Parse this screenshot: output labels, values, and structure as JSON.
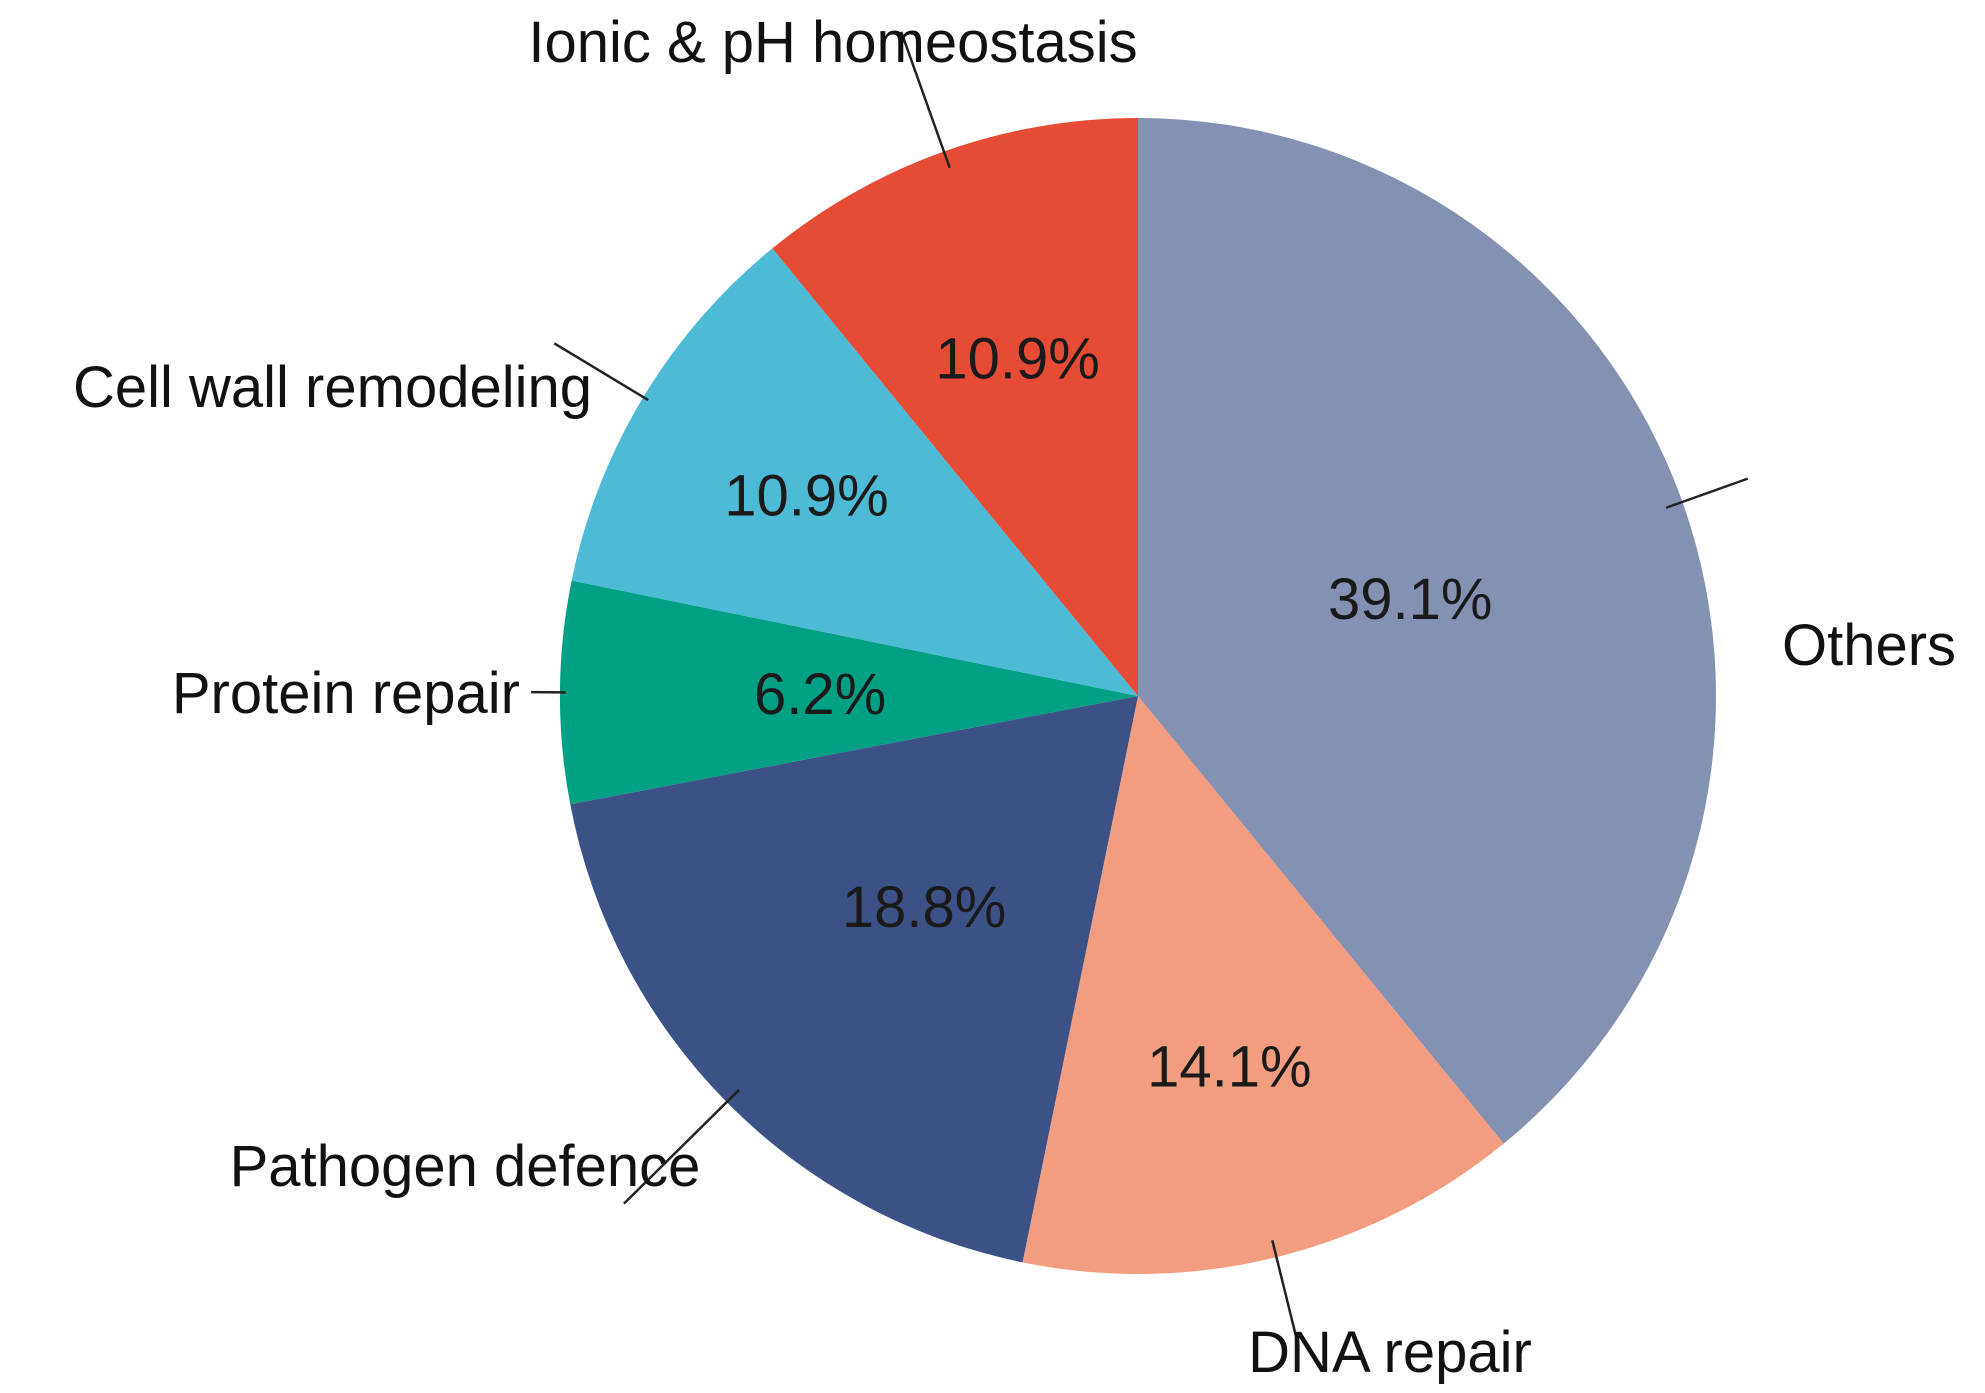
{
  "chart_data": {
    "type": "pie",
    "title": "",
    "start_angle_deg": 0,
    "direction": "clockwise",
    "slices": [
      {
        "name": "Others",
        "value": 39.1,
        "label": "39.1%",
        "color": "#8591b3"
      },
      {
        "name": "DNA repair",
        "value": 14.1,
        "label": "14.1%",
        "color": "#f29d80"
      },
      {
        "name": "Pathogen defence",
        "value": 18.8,
        "label": "18.8%",
        "color": "#3c5286"
      },
      {
        "name": "Protein repair",
        "value": 6.2,
        "label": "6.2%",
        "color": "#00a085"
      },
      {
        "name": "Cell wall remodeling",
        "value": 10.9,
        "label": "10.9%",
        "color": "#4dbad6"
      },
      {
        "name": "Ionic & pH homeostasis",
        "value": 10.9,
        "label": "10.9%",
        "color": "#e54b35"
      }
    ]
  }
}
